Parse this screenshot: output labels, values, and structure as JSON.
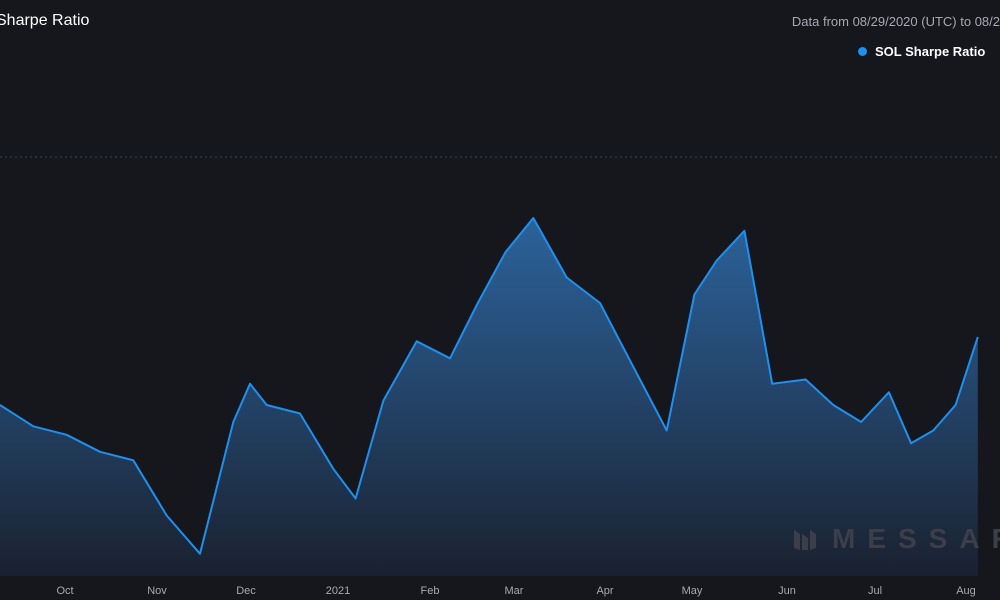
{
  "header": {
    "title": "Sharpe Ratio",
    "subtitle": "Data from 08/29/2020 (UTC) to 08/2"
  },
  "watermark": {
    "text": "MESSAR"
  },
  "colors": {
    "background": "#16171c",
    "line": "#1e90f0",
    "label": "#a6a9b2"
  },
  "chart_data": {
    "type": "area",
    "title": "Sharpe Ratio",
    "legend": "top-right",
    "grid": false,
    "series": [
      {
        "name": "SOL Sharpe Ratio",
        "color": "#1e90f0"
      }
    ],
    "x_ticks": [
      "Oct",
      "Nov",
      "Dec",
      "2021",
      "Feb",
      "Mar",
      "Apr",
      "May",
      "Jun",
      "Jul",
      "Aug"
    ],
    "x": [
      0,
      12,
      24,
      36,
      48,
      60,
      72,
      84,
      90,
      96,
      108,
      120,
      128,
      138,
      150,
      162,
      172,
      182,
      192,
      204,
      216,
      228,
      240,
      250,
      258,
      268,
      278,
      290,
      300,
      310,
      320,
      328,
      336,
      344,
      352
    ],
    "values": [
      0.0,
      -0.5,
      -0.7,
      -1.1,
      -1.3,
      -2.6,
      -3.5,
      -0.4,
      0.5,
      0.0,
      -0.2,
      -1.5,
      -2.2,
      0.1,
      1.5,
      1.1,
      2.4,
      3.6,
      4.4,
      3.0,
      2.4,
      0.9,
      -0.6,
      2.6,
      3.4,
      4.1,
      0.5,
      0.6,
      0.0,
      -0.4,
      0.3,
      -0.9,
      -0.6,
      0.0,
      1.6
    ]
  }
}
